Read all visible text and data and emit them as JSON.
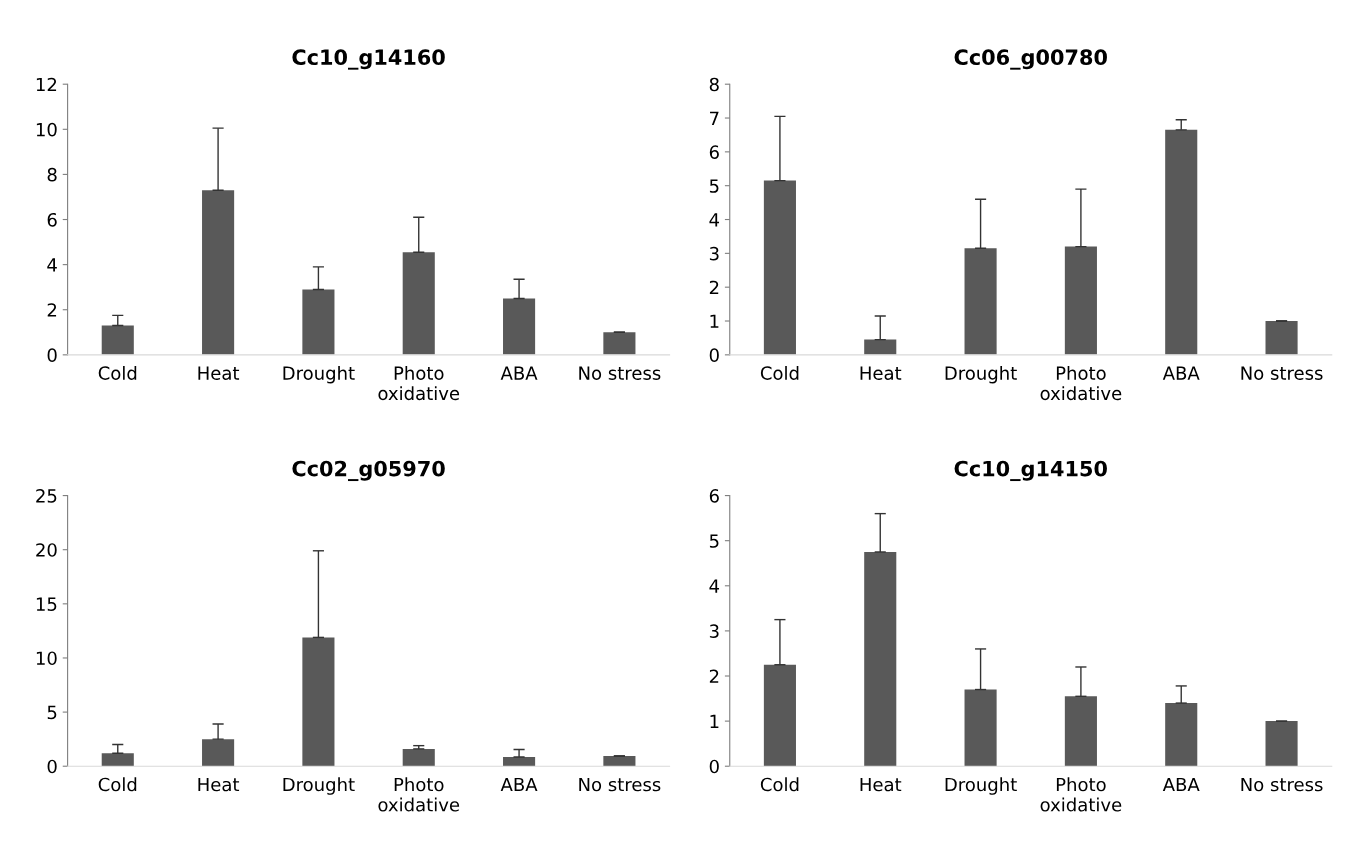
{
  "chart_data": [
    {
      "type": "bar",
      "title": "Cc10_g14160",
      "categories": [
        "Cold",
        "Heat",
        "Drought",
        "Photo\noxidative",
        "ABA",
        "No stress"
      ],
      "values": [
        1.3,
        7.3,
        2.9,
        4.55,
        2.5,
        1.0
      ],
      "errors": [
        [
          1.3,
          1.75
        ],
        [
          7.3,
          10.05
        ],
        [
          2.9,
          3.9
        ],
        [
          4.55,
          6.1
        ],
        [
          2.5,
          3.35
        ],
        [
          1.0,
          1.0
        ]
      ],
      "color": "#595959",
      "ylim": [
        0,
        12
      ],
      "yticks": [
        0,
        2,
        4,
        6,
        8,
        10,
        12
      ],
      "grid": false,
      "legend": false
    },
    {
      "type": "bar",
      "title": "Cc06_g00780",
      "categories": [
        "Cold",
        "Heat",
        "Drought",
        "Photo\noxidative",
        "ABA",
        "No stress"
      ],
      "values": [
        5.15,
        0.45,
        3.15,
        3.2,
        6.65,
        1.0
      ],
      "errors": [
        [
          5.15,
          7.05
        ],
        [
          0.45,
          1.15
        ],
        [
          3.15,
          4.6
        ],
        [
          3.2,
          4.9
        ],
        [
          6.65,
          6.95
        ],
        [
          1.0,
          1.0
        ]
      ],
      "color": "#595959",
      "ylim": [
        0,
        8
      ],
      "yticks": [
        0,
        1,
        2,
        3,
        4,
        5,
        6,
        7,
        8
      ],
      "grid": false,
      "legend": false
    },
    {
      "type": "bar",
      "title": "Cc02_g05970",
      "categories": [
        "Cold",
        "Heat",
        "Drought",
        "Photo\noxidative",
        "ABA",
        "No stress"
      ],
      "values": [
        1.2,
        2.5,
        11.9,
        1.6,
        0.85,
        0.95
      ],
      "errors": [
        [
          1.2,
          2.0
        ],
        [
          2.5,
          3.9
        ],
        [
          11.9,
          19.9
        ],
        [
          1.6,
          1.9
        ],
        [
          0.85,
          1.55
        ],
        [
          0.95,
          0.95
        ]
      ],
      "color": "#595959",
      "ylim": [
        0,
        25
      ],
      "yticks": [
        0,
        5,
        10,
        15,
        20,
        25
      ],
      "grid": false,
      "legend": false
    },
    {
      "type": "bar",
      "title": "Cc10_g14150",
      "categories": [
        "Cold",
        "Heat",
        "Drought",
        "Photo\noxidative",
        "ABA",
        "No stress"
      ],
      "values": [
        2.25,
        4.75,
        1.7,
        1.55,
        1.4,
        1.0
      ],
      "errors": [
        [
          2.25,
          3.25
        ],
        [
          4.75,
          5.6
        ],
        [
          1.7,
          2.6
        ],
        [
          1.55,
          2.2
        ],
        [
          1.4,
          1.78
        ],
        [
          1.0,
          1.0
        ]
      ],
      "color": "#595959",
      "ylim": [
        0,
        6
      ],
      "yticks": [
        0,
        1,
        2,
        3,
        4,
        5,
        6
      ],
      "grid": false,
      "legend": false
    }
  ]
}
